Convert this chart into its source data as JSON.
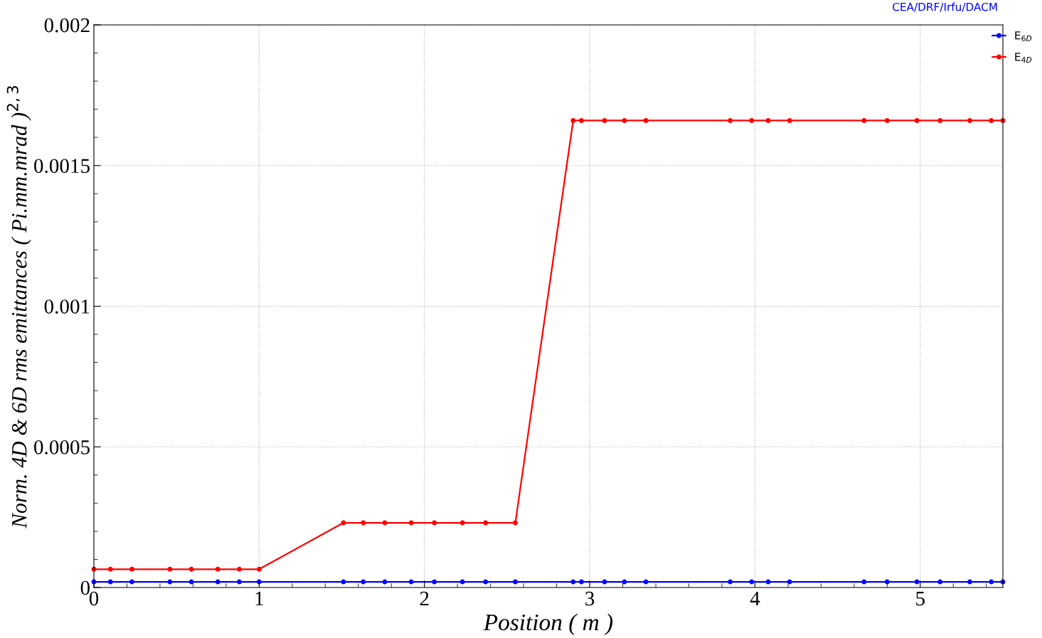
{
  "chart_data": {
    "type": "line",
    "xlabel": "Position ( m )",
    "ylabel": "Norm. 4D & 6D rms emittances ( Pi.mm.mrad )$^{2,3}$",
    "annotations": [
      "CEA/DRF/Irfu/DACM"
    ],
    "x": [
      0,
      0.1,
      0.23,
      0.46,
      0.59,
      0.75,
      0.88,
      1.0,
      1.51,
      1.63,
      1.76,
      1.92,
      2.06,
      2.23,
      2.37,
      2.55,
      2.9,
      2.95,
      3.09,
      3.21,
      3.34,
      3.85,
      3.98,
      4.08,
      4.21,
      4.66,
      4.8,
      4.98,
      5.12,
      5.3,
      5.43,
      5.5
    ],
    "series": [
      {
        "name": "E$_{6D}$",
        "color": "#0000ff",
        "values": [
          2e-05,
          2e-05,
          2e-05,
          2e-05,
          2e-05,
          2e-05,
          2e-05,
          2e-05,
          2e-05,
          2e-05,
          2e-05,
          2e-05,
          2e-05,
          2e-05,
          2e-05,
          2e-05,
          2e-05,
          2e-05,
          2e-05,
          2e-05,
          2e-05,
          2e-05,
          2e-05,
          2e-05,
          2e-05,
          2e-05,
          2e-05,
          2e-05,
          2e-05,
          2e-05,
          2e-05,
          2e-05
        ]
      },
      {
        "name": "E$_{4D}$",
        "color": "#ff0000",
        "values": [
          6.5e-05,
          6.5e-05,
          6.5e-05,
          6.5e-05,
          6.5e-05,
          6.5e-05,
          6.5e-05,
          6.5e-05,
          0.00023,
          0.00023,
          0.00023,
          0.00023,
          0.00023,
          0.00023,
          0.00023,
          0.00023,
          0.00166,
          0.00166,
          0.00166,
          0.00166,
          0.00166,
          0.00166,
          0.00166,
          0.00166,
          0.00166,
          0.00166,
          0.00166,
          0.00166,
          0.00166,
          0.00166,
          0.00166,
          0.00166
        ]
      }
    ],
    "xlim": [
      0,
      5.5
    ],
    "xticks": [
      0,
      1,
      2,
      3,
      4,
      5
    ],
    "ylim": [
      0,
      0.002
    ],
    "yticks": [
      0,
      0.0005,
      0.001,
      0.0015,
      0.002
    ],
    "grid": true,
    "legend": "top right",
    "marker": "circle",
    "line_style": "solid"
  }
}
